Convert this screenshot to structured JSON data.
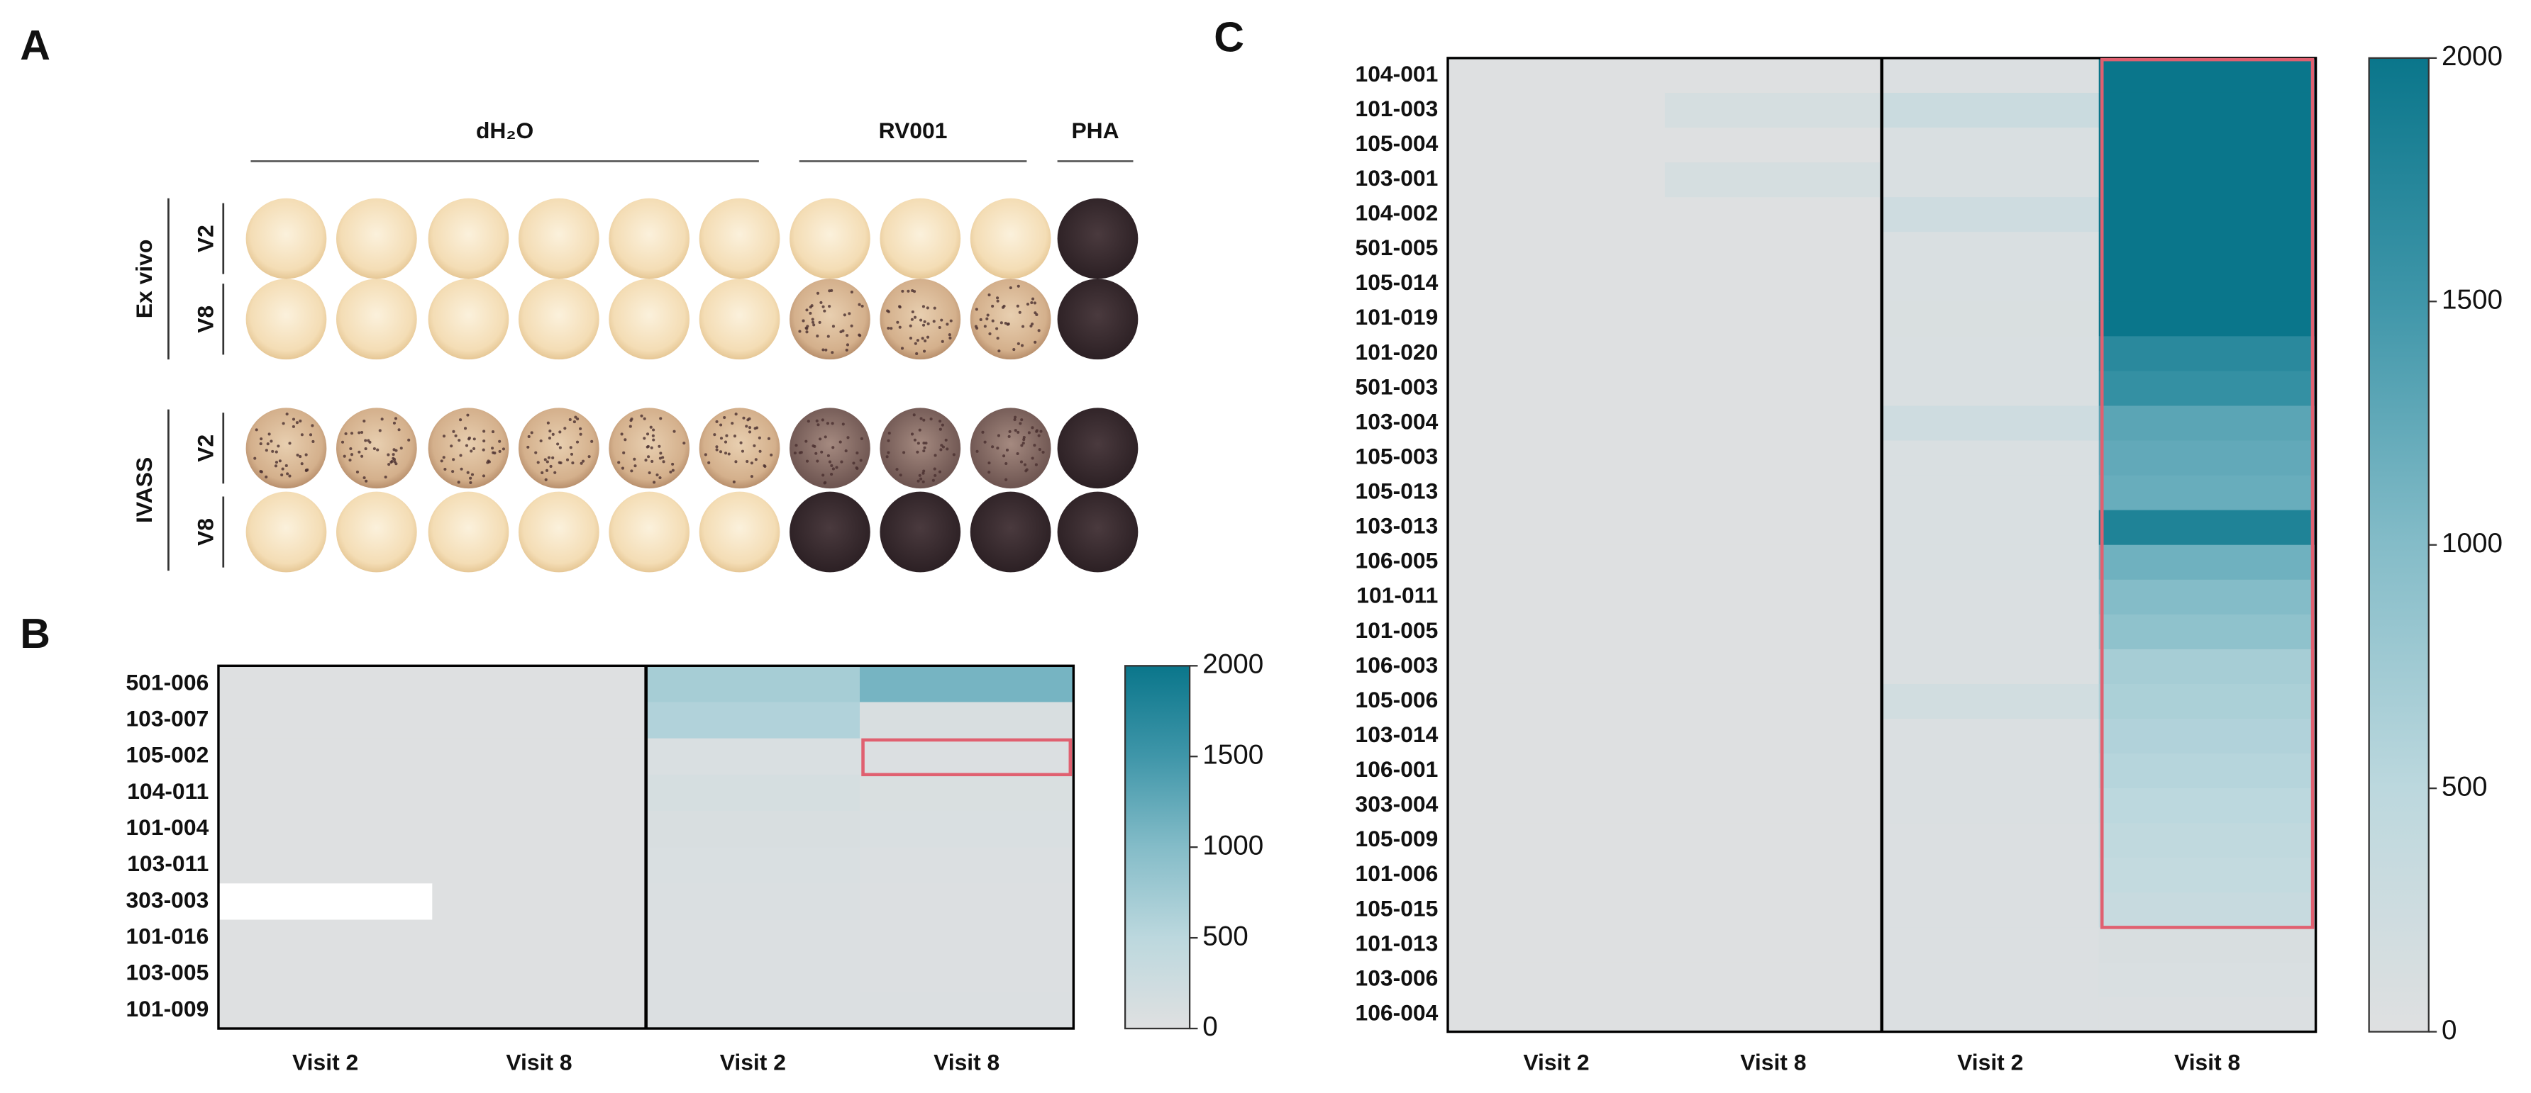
{
  "panel_a": {
    "label": "A",
    "groups": [
      "dH₂O",
      "RV001",
      "PHA"
    ],
    "conditions": [
      "Ex vivo",
      "IVASS"
    ],
    "visits": [
      "V2",
      "V8",
      "V2",
      "V8"
    ]
  },
  "chart_data": [
    {
      "type": "heatmap",
      "label": "B",
      "rows": [
        "501-006",
        "103-007",
        "105-002",
        "104-011",
        "101-004",
        "103-011",
        "303-003",
        "101-016",
        "103-005",
        "101-009"
      ],
      "columns": [
        "Visit 2",
        "Visit 8",
        "Visit 2",
        "Visit 8"
      ],
      "values": [
        [
          10,
          10,
          700,
          1100
        ],
        [
          10,
          10,
          600,
          100
        ],
        [
          10,
          10,
          80,
          60
        ],
        [
          10,
          10,
          150,
          90
        ],
        [
          10,
          10,
          100,
          80
        ],
        [
          10,
          10,
          80,
          60
        ],
        [
          null,
          10,
          70,
          50
        ],
        [
          10,
          10,
          60,
          50
        ],
        [
          10,
          10,
          60,
          40
        ],
        [
          10,
          10,
          60,
          60
        ]
      ],
      "zlim": [
        0,
        2000
      ],
      "zticks": [
        0,
        500,
        1000,
        1500,
        2000
      ],
      "colorscale": [
        "#dfe0e1",
        "#bcd8de",
        "#84bcc8",
        "#3f96a9",
        "#0a768b"
      ]
    },
    {
      "type": "heatmap",
      "label": "C",
      "rows": [
        "104-001",
        "101-003",
        "105-004",
        "103-001",
        "104-002",
        "501-005",
        "105-014",
        "101-019",
        "101-020",
        "501-003",
        "103-004",
        "105-003",
        "105-013",
        "103-013",
        "106-005",
        "101-011",
        "101-005",
        "106-003",
        "105-006",
        "103-014",
        "106-001",
        "303-004",
        "105-009",
        "101-006",
        "105-015",
        "101-013",
        "103-006",
        "106-004"
      ],
      "columns": [
        "Visit 2",
        "Visit 8",
        "Visit 2",
        "Visit 8"
      ],
      "values": [
        [
          20,
          20,
          60,
          2000
        ],
        [
          20,
          150,
          300,
          2000
        ],
        [
          20,
          20,
          80,
          2000
        ],
        [
          20,
          150,
          80,
          2000
        ],
        [
          20,
          20,
          250,
          2000
        ],
        [
          20,
          20,
          80,
          2000
        ],
        [
          20,
          20,
          80,
          2000
        ],
        [
          20,
          20,
          90,
          2000
        ],
        [
          20,
          20,
          80,
          1700
        ],
        [
          20,
          20,
          80,
          1600
        ],
        [
          20,
          20,
          250,
          1300
        ],
        [
          20,
          20,
          80,
          1250
        ],
        [
          20,
          20,
          80,
          1200
        ],
        [
          20,
          20,
          80,
          1800
        ],
        [
          20,
          20,
          80,
          1150
        ],
        [
          20,
          20,
          70,
          1000
        ],
        [
          20,
          20,
          70,
          900
        ],
        [
          20,
          20,
          70,
          700
        ],
        [
          20,
          20,
          200,
          650
        ],
        [
          20,
          20,
          70,
          600
        ],
        [
          20,
          20,
          70,
          550
        ],
        [
          20,
          20,
          70,
          500
        ],
        [
          20,
          20,
          60,
          450
        ],
        [
          20,
          20,
          60,
          400
        ],
        [
          20,
          20,
          60,
          350
        ],
        [
          20,
          20,
          60,
          100
        ],
        [
          20,
          20,
          60,
          80
        ],
        [
          20,
          20,
          60,
          60
        ]
      ],
      "zlim": [
        0,
        2000
      ],
      "zticks": [
        0,
        500,
        1000,
        1500,
        2000
      ],
      "colorscale": [
        "#dfe0e1",
        "#bcd8de",
        "#84bcc8",
        "#3f96a9",
        "#0a768b"
      ]
    }
  ]
}
